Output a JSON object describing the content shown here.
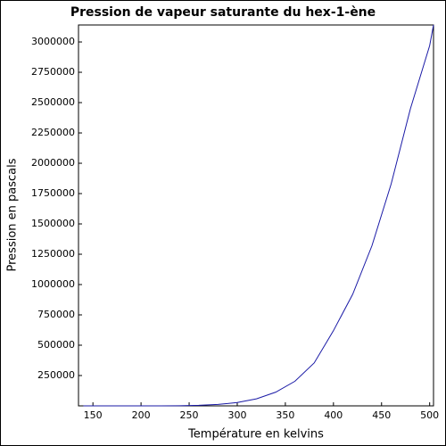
{
  "chart_data": {
    "type": "line",
    "title": "Pression de vapeur saturante du hex-1-ène",
    "xlabel": "Température en kelvins",
    "ylabel": "Pression en pascals",
    "x": [
      140,
      150,
      160,
      170,
      180,
      190,
      200,
      220,
      240,
      260,
      280,
      300,
      320,
      340,
      360,
      380,
      400,
      420,
      440,
      460,
      480,
      500,
      504
    ],
    "values": [
      0.03,
      0.16,
      0.74,
      2.8,
      9.1,
      26,
      67,
      346,
      1350,
      4300,
      11600,
      27400,
      58000,
      113000,
      203000,
      354000,
      620000,
      920000,
      1320000,
      1830000,
      2450000,
      2970000,
      3140000
    ],
    "color": "#1a1aa6",
    "xlim": [
      135,
      504
    ],
    "ylim": [
      0,
      3140000
    ],
    "xticks": [
      150,
      200,
      250,
      300,
      350,
      400,
      450,
      500
    ],
    "yticks": [
      250000,
      500000,
      750000,
      1000000,
      1250000,
      1500000,
      1750000,
      2000000,
      2250000,
      2500000,
      2750000,
      3000000
    ],
    "grid": false
  }
}
